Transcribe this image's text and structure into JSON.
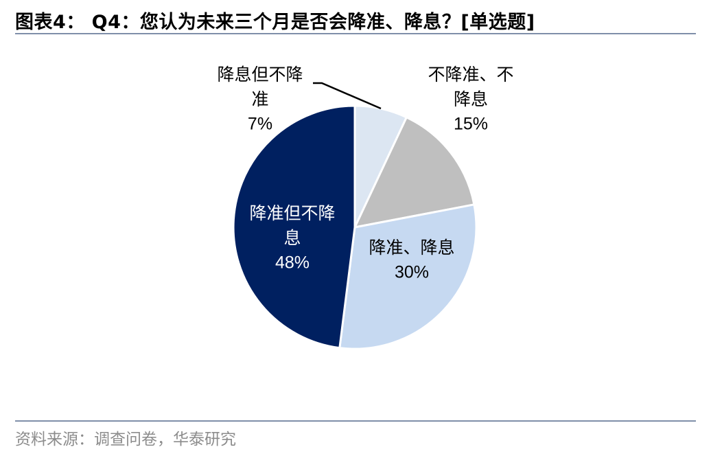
{
  "title": "图表4：  Q4：您认为未来三个月是否会降准、降息？[单选题]",
  "source": "资料来源：调查问卷，华泰研究",
  "chart_data": {
    "type": "pie",
    "start_angle_deg": 90,
    "direction": "clockwise",
    "slices": [
      {
        "label_lines": [
          "降息但不降",
          "准"
        ],
        "value": 7,
        "value_text": "7%",
        "color": "#dce6f2",
        "text_color": "#000000"
      },
      {
        "label_lines": [
          "不降准、不",
          "降息"
        ],
        "value": 15,
        "value_text": "15%",
        "color": "#bfbfbf",
        "text_color": "#000000"
      },
      {
        "label_lines": [
          "降准、降息"
        ],
        "value": 30,
        "value_text": "30%",
        "color": "#c6d9f1",
        "text_color": "#000000"
      },
      {
        "label_lines": [
          "降准但不降",
          "息"
        ],
        "value": 48,
        "value_text": "48%",
        "color": "#002060",
        "text_color": "#ffffff"
      }
    ]
  }
}
